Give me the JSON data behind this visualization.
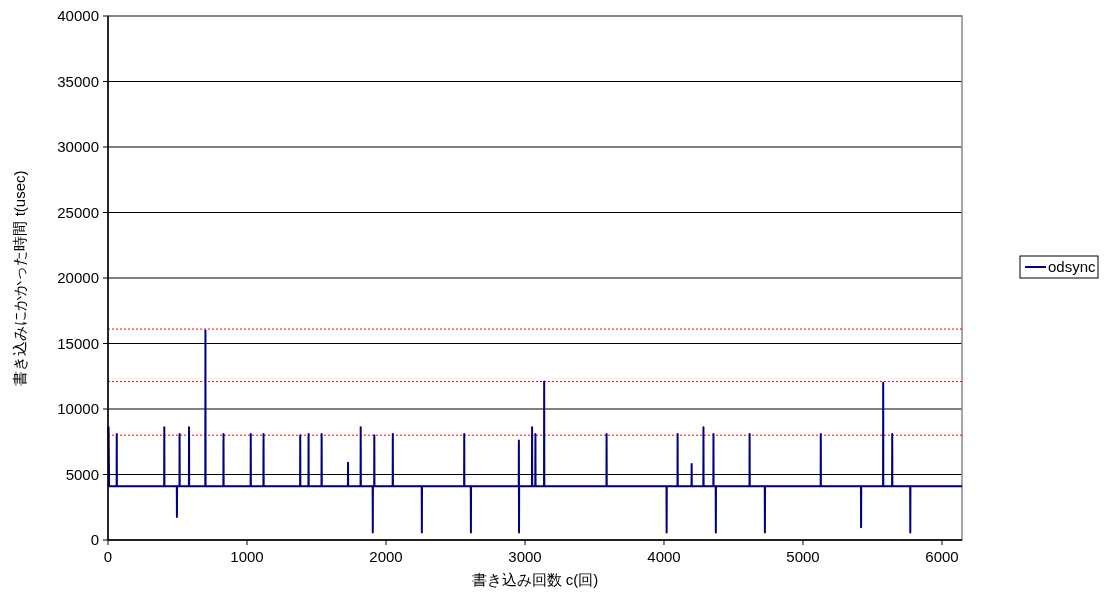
{
  "chart_data": {
    "type": "line",
    "xlabel": "書き込み回数 c(回)",
    "ylabel": "書き込みにかかった時間 t(usec)",
    "xlim": [
      0,
      6144
    ],
    "xticks": [
      0,
      1000,
      2000,
      3000,
      4000,
      5000,
      6000
    ],
    "ylim": [
      0,
      40000
    ],
    "yticks": [
      0,
      5000,
      10000,
      15000,
      20000,
      25000,
      30000,
      35000,
      40000
    ],
    "grid": "y",
    "legend": "right",
    "line_style": "solid",
    "ref_lines": [
      {
        "axis": "y",
        "value": 4100,
        "color": "#ff0000",
        "line_style": "dashed"
      },
      {
        "axis": "y",
        "value": 8000,
        "color": "#ff0000",
        "line_style": "dotted"
      },
      {
        "axis": "y",
        "value": 12100,
        "color": "#ff0000",
        "line_style": "dotted"
      },
      {
        "axis": "y",
        "value": 16100,
        "color": "#ff0000",
        "line_style": "dotted"
      }
    ],
    "series": [
      {
        "name": "odsync",
        "color": "#000080",
        "x": [
          0,
          4,
          8,
          62,
          63,
          64,
          404,
          405,
          406,
          495,
          496,
          497,
          514,
          515,
          516,
          582,
          583,
          584,
          700,
          701,
          702,
          830,
          831,
          832,
          1026,
          1027,
          1028,
          1118,
          1119,
          1120,
          1382,
          1383,
          1384,
          1442,
          1443,
          1444,
          1536,
          1537,
          1538,
          1726,
          1727,
          1728,
          1817,
          1818,
          1819,
          1904,
          1905,
          1906,
          1915,
          1916,
          1917,
          2048,
          2049,
          2050,
          2257,
          2258,
          2259,
          2562,
          2563,
          2564,
          2610,
          2611,
          2612,
          2955,
          2956,
          2957,
          2958,
          3050,
          3051,
          3052,
          3074,
          3075,
          3076,
          3137,
          3138,
          3139,
          3586,
          3587,
          3588,
          4018,
          4019,
          4020,
          4097,
          4098,
          4099,
          4198,
          4199,
          4200,
          4283,
          4284,
          4285,
          4355,
          4356,
          4357,
          4372,
          4373,
          4374,
          4615,
          4616,
          4617,
          4725,
          4726,
          4727,
          5127,
          5128,
          5129,
          5417,
          5418,
          5419,
          5576,
          5577,
          5578,
          5641,
          5642,
          5643,
          5771,
          5772,
          5773,
          6144
        ],
        "values": [
          8100,
          8600,
          4100,
          4100,
          8100,
          4100,
          4100,
          8600,
          4100,
          4100,
          1750,
          4100,
          4100,
          8100,
          4100,
          4100,
          8600,
          4100,
          4100,
          16000,
          4100,
          4100,
          8100,
          4100,
          4100,
          8100,
          4100,
          4100,
          8100,
          4100,
          4100,
          8000,
          4100,
          4100,
          8100,
          4100,
          4100,
          8100,
          4100,
          4100,
          5900,
          4100,
          4100,
          8600,
          4100,
          4100,
          580,
          4100,
          4100,
          8000,
          4100,
          4100,
          8100,
          4100,
          4100,
          580,
          4100,
          4100,
          8100,
          4100,
          4100,
          580,
          4100,
          4100,
          7600,
          580,
          4100,
          4100,
          8600,
          4100,
          4100,
          8100,
          4100,
          4100,
          12100,
          4100,
          4100,
          8100,
          4100,
          4100,
          580,
          4100,
          4100,
          8100,
          4100,
          4100,
          5800,
          4100,
          4100,
          8600,
          4100,
          4100,
          8100,
          4100,
          4100,
          580,
          4100,
          4100,
          8100,
          4100,
          4100,
          580,
          4100,
          4100,
          8100,
          4100,
          4100,
          970,
          4100,
          4100,
          12000,
          4100,
          4100,
          8100,
          4100,
          4100,
          580,
          4100,
          4100
        ]
      }
    ]
  }
}
